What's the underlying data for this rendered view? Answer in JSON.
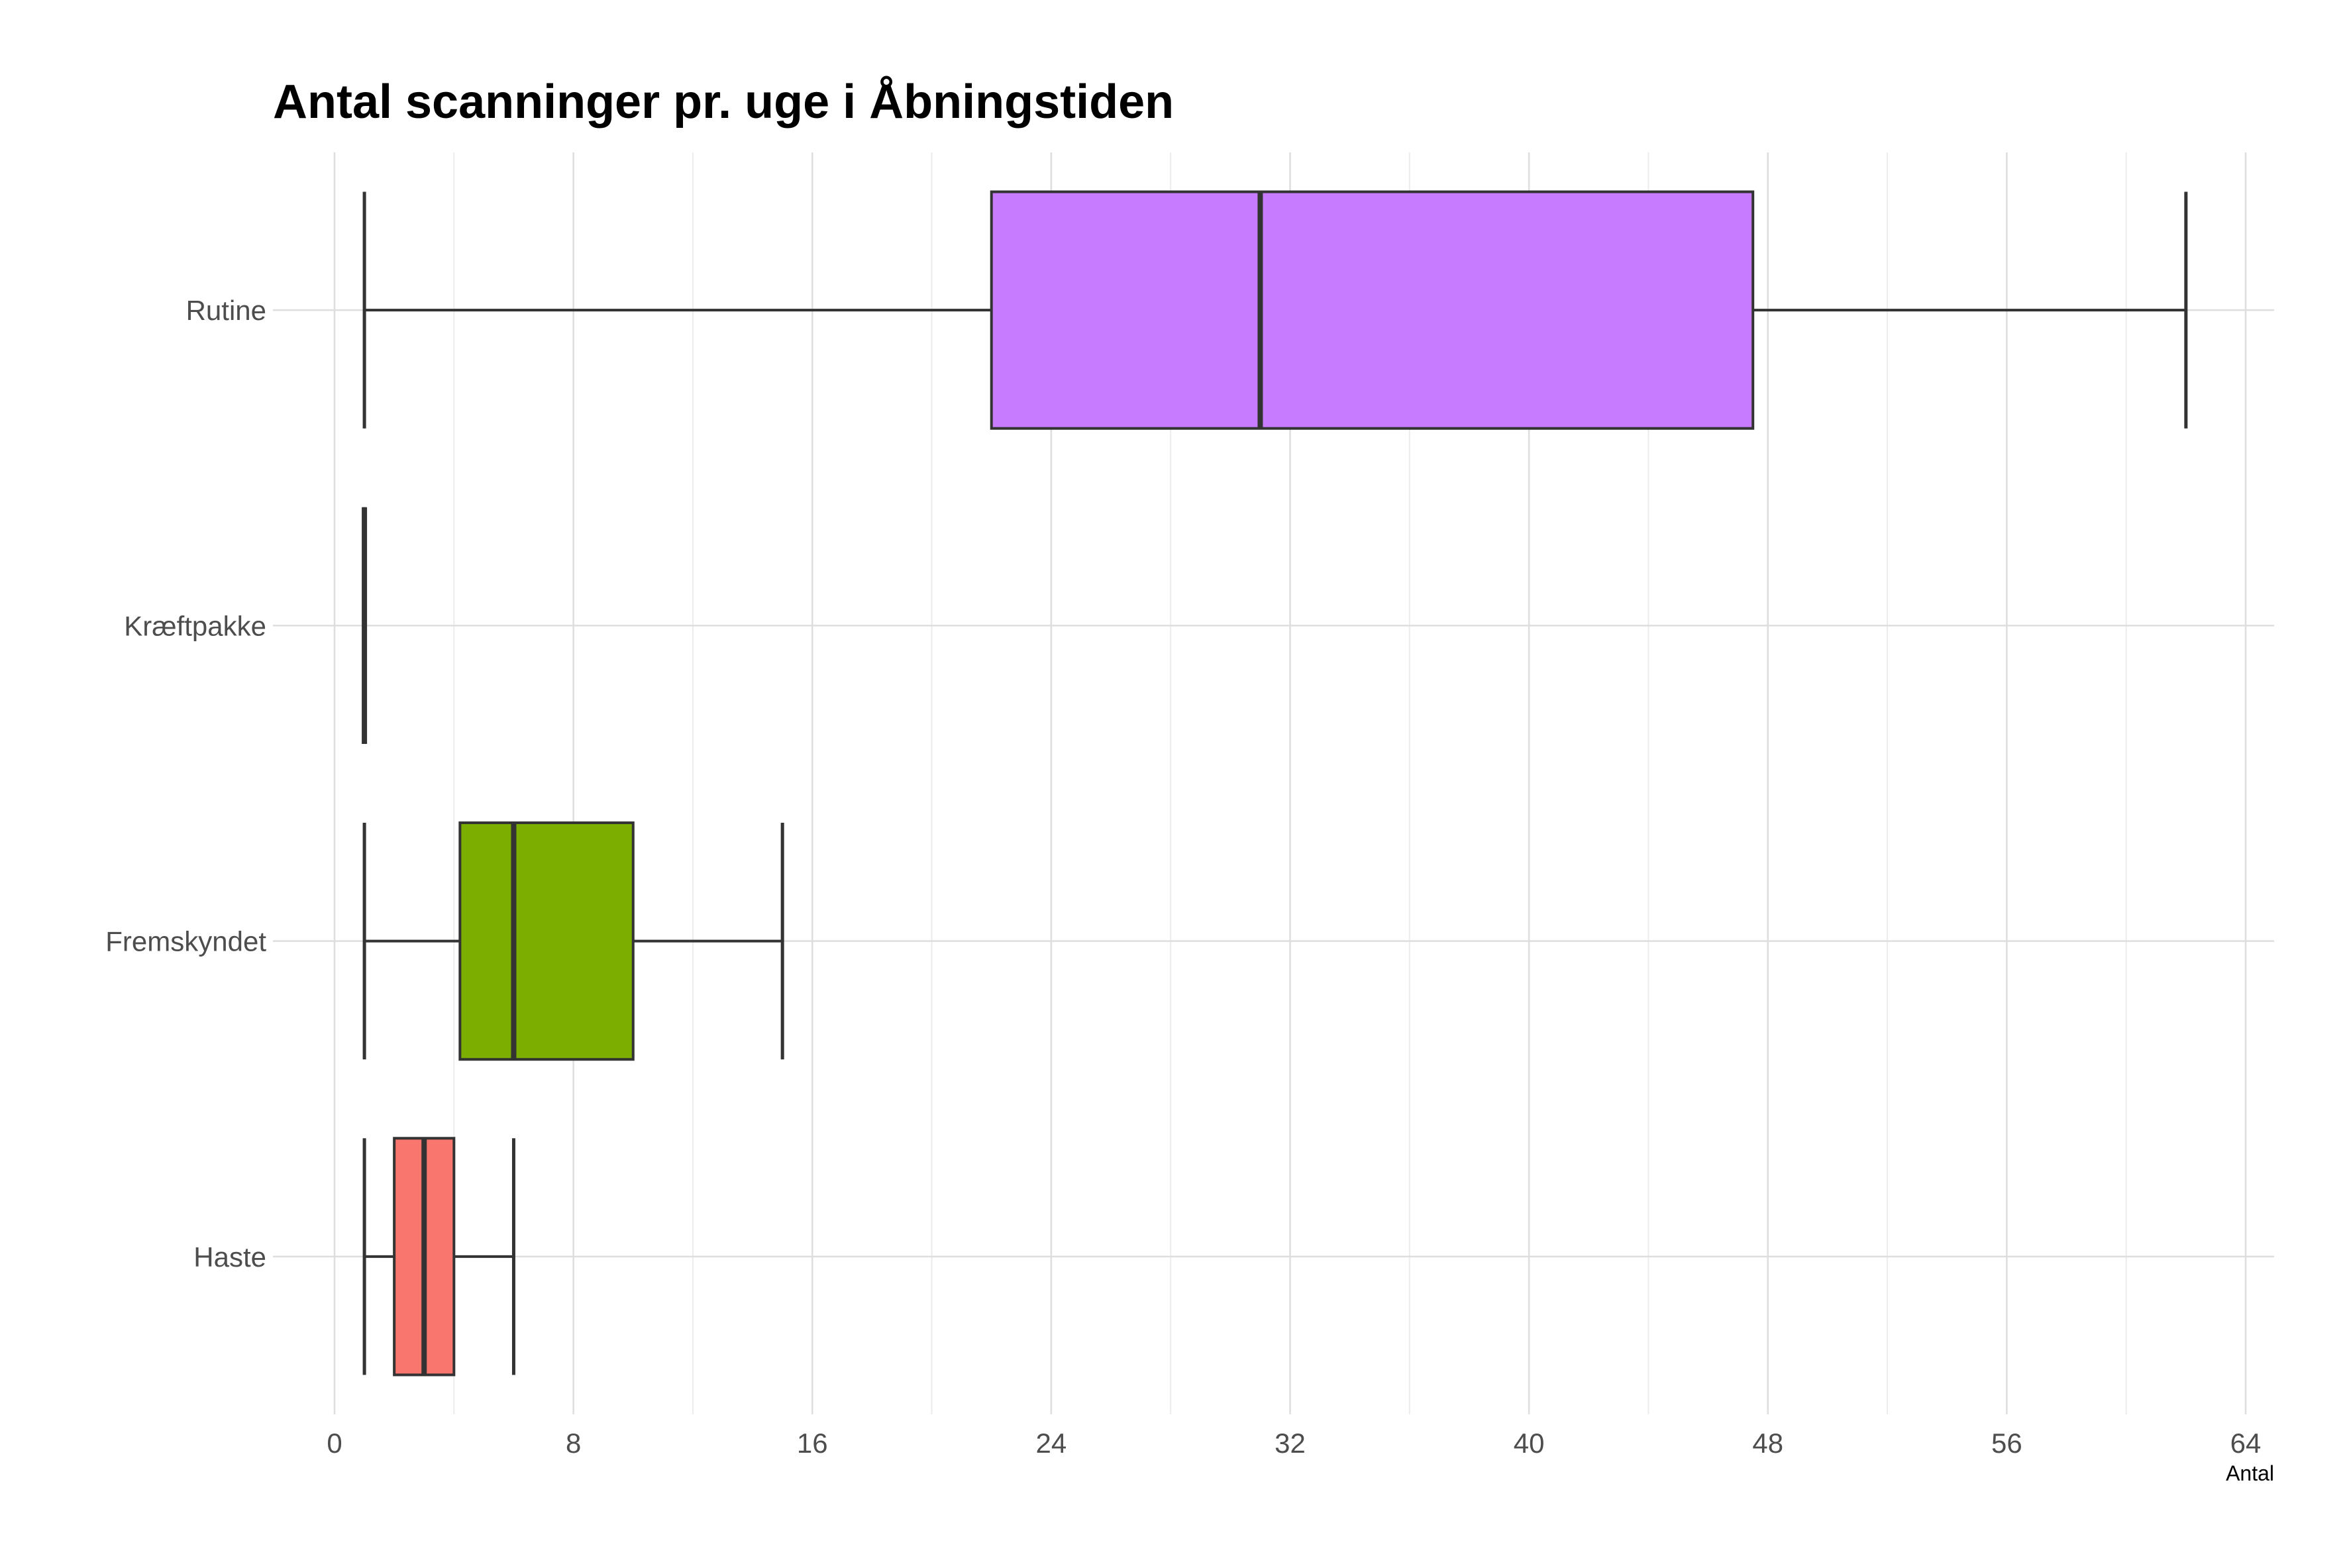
{
  "chart_data": {
    "type": "boxplot",
    "orientation": "horizontal",
    "title": "Antal scanninger pr. uge i Åbningstiden",
    "xlabel": "Antal",
    "ylabel": "",
    "xlim": [
      -1,
      65
    ],
    "x_ticks": [
      0,
      8,
      16,
      24,
      32,
      40,
      48,
      56,
      64
    ],
    "grid": true,
    "legend": "none",
    "categories": [
      "Rutine",
      "Kræftpakke",
      "Fremskyndet",
      "Haste"
    ],
    "boxes": [
      {
        "category": "Rutine",
        "min": 1,
        "q1": 22,
        "median": 31,
        "q3": 47.5,
        "max": 62,
        "color": "#C77CFF"
      },
      {
        "category": "Kræftpakke",
        "min": 1,
        "q1": 1,
        "median": 1,
        "q3": 1,
        "max": 1,
        "color": "#00BFC4"
      },
      {
        "category": "Fremskyndet",
        "min": 1,
        "q1": 4.2,
        "median": 6,
        "q3": 10,
        "max": 15,
        "color": "#7CAE00"
      },
      {
        "category": "Haste",
        "min": 1,
        "q1": 2,
        "median": 3,
        "q3": 4,
        "max": 6,
        "color": "#F8766D"
      }
    ]
  }
}
